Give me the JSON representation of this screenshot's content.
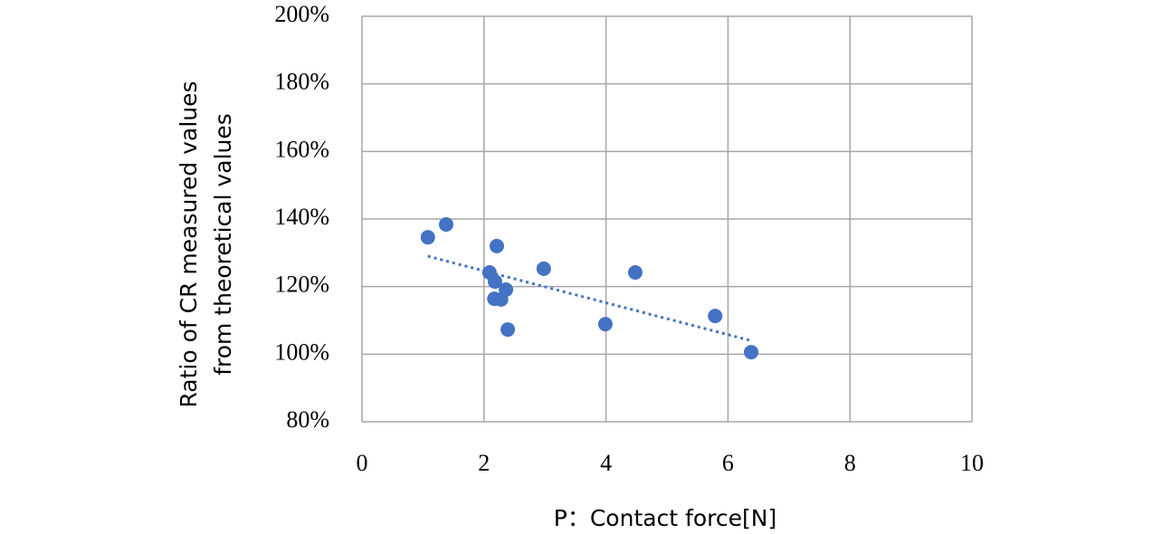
{
  "chart_data": {
    "type": "scatter",
    "x_label": "P：Contact force[N]",
    "y_label": [
      "Ratio of CR measured values",
      "from theoretical values"
    ],
    "series": [
      {
        "color": "#4472c4",
        "x": [
          1.08,
          1.38,
          2.21,
          2.98,
          2.09,
          4.48,
          2.18,
          2.36,
          2.17,
          2.28,
          2.39,
          3.99,
          5.79,
          6.38
        ],
        "values": [
          134.6,
          138.4,
          132,
          125.3,
          124.2,
          124.2,
          121.5,
          119.1,
          116.4,
          116.2,
          107.3,
          108.9,
          111.3,
          100.6
        ]
      }
    ],
    "trendline": {
      "color": "#4472c4",
      "x": [
        1.08,
        6.38
      ],
      "values": [
        129,
        104
      ]
    },
    "xlim": [
      0,
      10
    ],
    "xticks": [
      0,
      2,
      4,
      6,
      8,
      10
    ],
    "ylim": [
      80,
      200
    ],
    "yticks": [
      {
        "value": 80,
        "label": "80%"
      },
      {
        "value": 100,
        "label": "100%"
      },
      {
        "value": 120,
        "label": "120%"
      },
      {
        "value": 140,
        "label": "140%"
      },
      {
        "value": 160,
        "label": "160%"
      },
      {
        "value": 180,
        "label": "180%"
      },
      {
        "value": 200,
        "label": "200%"
      }
    ],
    "grid": true
  }
}
